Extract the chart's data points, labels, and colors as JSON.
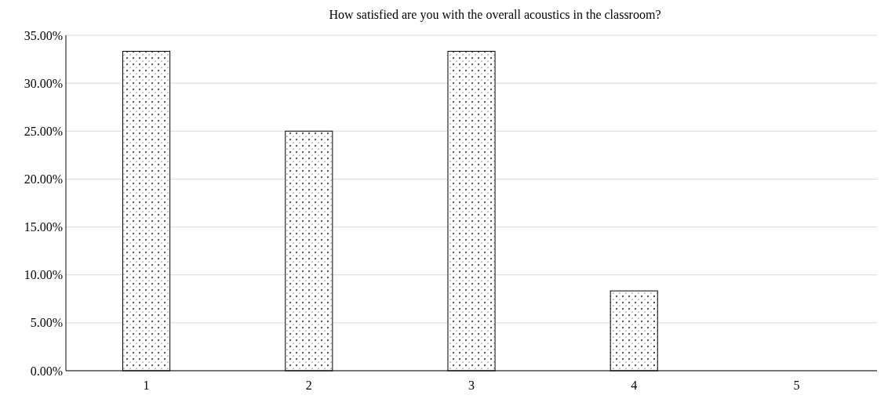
{
  "chart_data": {
    "type": "bar",
    "title": "How satisfied are you with the overall acoustics in the classroom?",
    "categories": [
      "1",
      "2",
      "3",
      "4",
      "5"
    ],
    "values": [
      33.33,
      25,
      33.33,
      8.33,
      0
    ],
    "color": "#000000",
    "ylim": [
      0,
      35
    ],
    "yticks": [
      {
        "value": 0,
        "label": "0.00%"
      },
      {
        "value": 5,
        "label": "5.00%"
      },
      {
        "value": 10,
        "label": "10.00%"
      },
      {
        "value": 15,
        "label": "15.00%"
      },
      {
        "value": 20,
        "label": "20.00%"
      },
      {
        "value": 25,
        "label": "25.00%"
      },
      {
        "value": 30,
        "label": "30.00%"
      },
      {
        "value": 35,
        "label": "35.00%"
      }
    ],
    "grid": "y"
  }
}
